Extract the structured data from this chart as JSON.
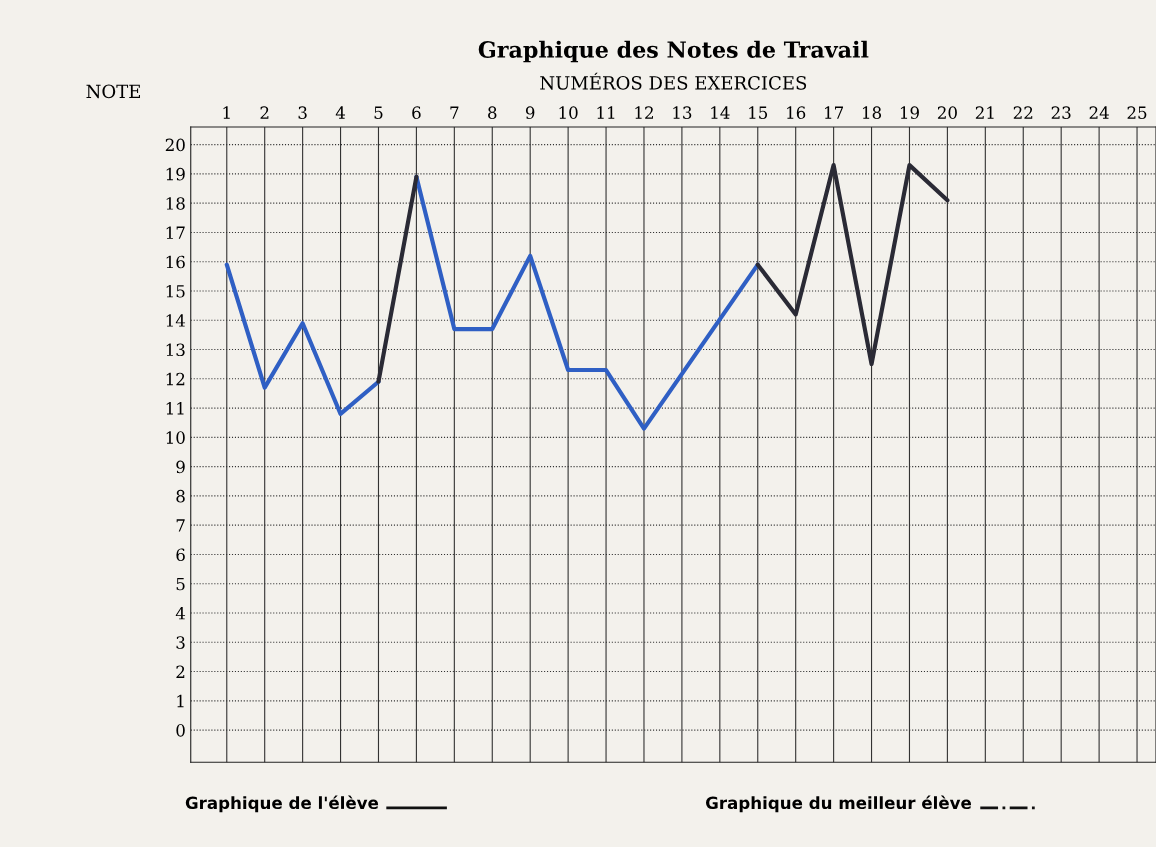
{
  "chart_data": {
    "type": "line",
    "title": "Graphique des Notes de Travail",
    "xlabel": "NUMÉROS DES EXERCICES",
    "ylabel": "NOTE",
    "xlim": [
      0.05,
      25.5
    ],
    "xticks": [
      1,
      2,
      3,
      4,
      5,
      6,
      7,
      8,
      9,
      10,
      11,
      12,
      13,
      14,
      15,
      16,
      17,
      18,
      19,
      20,
      21,
      22,
      23,
      24,
      25
    ],
    "ylim": [
      -1.1,
      20.6
    ],
    "yticks": [
      0,
      1,
      2,
      3,
      4,
      5,
      6,
      7,
      8,
      9,
      10,
      11,
      12,
      13,
      14,
      15,
      16,
      17,
      18,
      19,
      20
    ],
    "grid": true,
    "marker": "none",
    "line_style": "solid",
    "series": [
      {
        "color": "#2f5fc4",
        "x": [
          1,
          2,
          3,
          4,
          5,
          null,
          6,
          7,
          8,
          9,
          10,
          11,
          12,
          15
        ],
        "values": [
          15.9,
          11.7,
          13.9,
          10.8,
          11.9,
          null,
          18.9,
          13.7,
          13.7,
          16.2,
          12.3,
          12.3,
          10.3,
          15.9
        ]
      },
      {
        "color": "#2a2a35",
        "x": [
          5,
          6,
          null,
          15,
          16,
          17,
          18,
          19,
          20
        ],
        "values": [
          11.9,
          18.9,
          null,
          15.9,
          14.2,
          19.3,
          12.5,
          19.3,
          18.1
        ]
      }
    ],
    "annotations": [
      "Graphique de l'élève",
      "Graphique du meilleur élève"
    ]
  }
}
